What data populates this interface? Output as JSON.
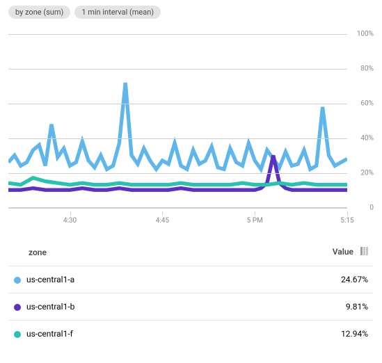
{
  "filters": [
    {
      "label": "by zone (sum)"
    },
    {
      "label": "1 min interval (mean)"
    }
  ],
  "chart": {
    "type": "line",
    "background_color": "#ffffff",
    "grid_color": "#d0d0d0",
    "y_axis": {
      "min": 0,
      "max": 105,
      "ticks": [
        0,
        20,
        40,
        60,
        80,
        100
      ],
      "tick_labels": [
        "0",
        "20%",
        "40%",
        "60%",
        "80%",
        "100%"
      ],
      "label_fontsize": 10,
      "label_color": "#888888"
    },
    "x_axis": {
      "min": 0,
      "max": 55,
      "ticks": [
        10,
        25,
        40,
        55
      ],
      "tick_labels": [
        "4:30",
        "4:45",
        "5 PM",
        "5:15"
      ],
      "label_fontsize": 10,
      "label_color": "#888888"
    },
    "series": [
      {
        "name": "us-central1-a",
        "color": "#5eb6ea",
        "stroke_width": 1.4,
        "data": [
          [
            0,
            26
          ],
          [
            1,
            30
          ],
          [
            2,
            24
          ],
          [
            3,
            26
          ],
          [
            4,
            33
          ],
          [
            5,
            36
          ],
          [
            6,
            24
          ],
          [
            7,
            48
          ],
          [
            8,
            29
          ],
          [
            9,
            34
          ],
          [
            10,
            24
          ],
          [
            11,
            26
          ],
          [
            12,
            38
          ],
          [
            13,
            27
          ],
          [
            14,
            23
          ],
          [
            15,
            30
          ],
          [
            16,
            22
          ],
          [
            17,
            24
          ],
          [
            18,
            37
          ],
          [
            19,
            72
          ],
          [
            20,
            30
          ],
          [
            21,
            25
          ],
          [
            22,
            34
          ],
          [
            23,
            27
          ],
          [
            24,
            22
          ],
          [
            25,
            27
          ],
          [
            26,
            25
          ],
          [
            27,
            37
          ],
          [
            28,
            24
          ],
          [
            29,
            22
          ],
          [
            30,
            33
          ],
          [
            31,
            25
          ],
          [
            32,
            27
          ],
          [
            33,
            35
          ],
          [
            34,
            23
          ],
          [
            35,
            22
          ],
          [
            36,
            34
          ],
          [
            37,
            26
          ],
          [
            38,
            24
          ],
          [
            39,
            37
          ],
          [
            40,
            27
          ],
          [
            41,
            22
          ],
          [
            42,
            33
          ],
          [
            43,
            28
          ],
          [
            44,
            23
          ],
          [
            45,
            32
          ],
          [
            46,
            24
          ],
          [
            47,
            25
          ],
          [
            48,
            33
          ],
          [
            49,
            22
          ],
          [
            50,
            24
          ],
          [
            51,
            58
          ],
          [
            52,
            30
          ],
          [
            53,
            24
          ],
          [
            54,
            26
          ],
          [
            55,
            28
          ]
        ]
      },
      {
        "name": "us-central1-b",
        "color": "#5a2fc1",
        "stroke_width": 1.4,
        "data": [
          [
            0,
            10
          ],
          [
            2,
            10
          ],
          [
            4,
            11
          ],
          [
            6,
            10
          ],
          [
            8,
            10
          ],
          [
            10,
            10
          ],
          [
            12,
            11
          ],
          [
            14,
            10
          ],
          [
            16,
            10
          ],
          [
            18,
            11
          ],
          [
            20,
            10
          ],
          [
            22,
            10
          ],
          [
            24,
            10
          ],
          [
            26,
            10
          ],
          [
            28,
            11
          ],
          [
            30,
            10
          ],
          [
            32,
            10
          ],
          [
            34,
            10
          ],
          [
            36,
            10
          ],
          [
            38,
            10
          ],
          [
            40,
            10
          ],
          [
            41,
            11
          ],
          [
            42,
            14
          ],
          [
            43,
            30
          ],
          [
            44,
            14
          ],
          [
            45,
            11
          ],
          [
            46,
            10
          ],
          [
            48,
            10
          ],
          [
            50,
            10
          ],
          [
            52,
            10
          ],
          [
            55,
            10
          ]
        ]
      },
      {
        "name": "us-central1-f",
        "color": "#27c2b0",
        "stroke_width": 1.4,
        "data": [
          [
            0,
            14
          ],
          [
            2,
            13
          ],
          [
            4,
            17
          ],
          [
            6,
            15
          ],
          [
            8,
            14
          ],
          [
            10,
            13
          ],
          [
            12,
            14
          ],
          [
            14,
            13
          ],
          [
            16,
            13
          ],
          [
            18,
            14
          ],
          [
            20,
            13
          ],
          [
            22,
            13
          ],
          [
            24,
            13
          ],
          [
            26,
            13
          ],
          [
            28,
            14
          ],
          [
            30,
            13
          ],
          [
            32,
            13
          ],
          [
            34,
            13
          ],
          [
            36,
            13
          ],
          [
            38,
            14
          ],
          [
            40,
            13
          ],
          [
            42,
            13
          ],
          [
            44,
            14
          ],
          [
            46,
            13
          ],
          [
            48,
            14
          ],
          [
            50,
            13
          ],
          [
            52,
            13
          ],
          [
            55,
            13
          ]
        ]
      }
    ]
  },
  "legend": {
    "columns": {
      "zone_header": "zone",
      "value_header": "Value"
    },
    "rows": [
      {
        "color": "#5eb6ea",
        "zone": "us-central1-a",
        "value": "24.67%"
      },
      {
        "color": "#5a2fc1",
        "zone": "us-central1-b",
        "value": "9.81%"
      },
      {
        "color": "#27c2b0",
        "zone": "us-central1-f",
        "value": "12.94%"
      }
    ]
  }
}
